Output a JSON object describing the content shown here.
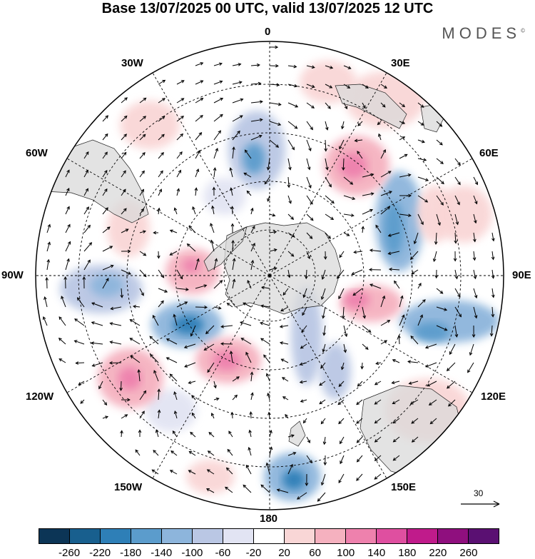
{
  "title": "Base 13/07/2025 00 UTC, valid 13/07/2025 12 UTC",
  "brand": "MODES",
  "brand_mark": "©",
  "map": {
    "projection": "south polar stereographic",
    "longitude_labels": {
      "top": "0",
      "top_right": "30E",
      "right_upper": "60E",
      "right": "90E",
      "right_lower": "120E",
      "bottom_right": "150E",
      "bottom": "180",
      "bottom_left": "150W",
      "left_lower": "120W",
      "left": "90W",
      "left_upper": "60W",
      "top_left": "30W"
    },
    "colors": {
      "land": "#d9d9d9",
      "graticule": "#000000",
      "coast": "#222222"
    }
  },
  "reference_vector": {
    "value": "30"
  },
  "colorbar": {
    "colors": [
      "#0c3556",
      "#185f8e",
      "#2e7fb7",
      "#5b9ccc",
      "#8db5dc",
      "#bac7e4",
      "#e2e4f3",
      "#ffffff",
      "#f9d6d6",
      "#f5b1bf",
      "#ee81ad",
      "#df4fa0",
      "#c01b8b",
      "#8f0f7e",
      "#5a1072"
    ],
    "tick_labels": [
      "-260",
      "-220",
      "-180",
      "-140",
      "-100",
      "-60",
      "-20",
      "20",
      "60",
      "100",
      "140",
      "180",
      "220",
      "260"
    ]
  }
}
